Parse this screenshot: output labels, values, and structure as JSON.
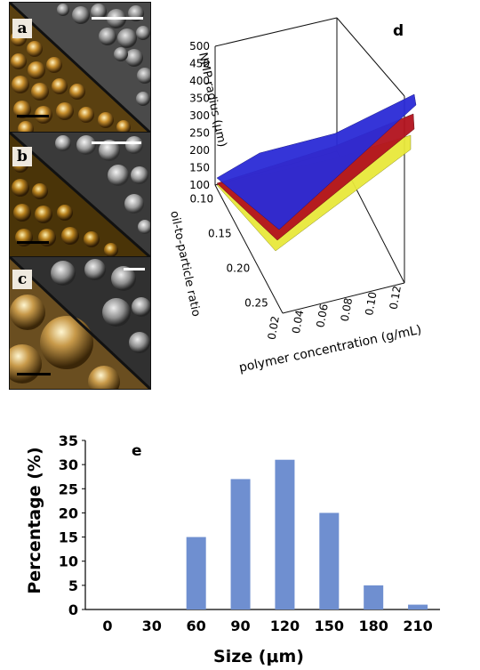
{
  "panels": {
    "a": {
      "letter": "a"
    },
    "b": {
      "letter": "b"
    },
    "c": {
      "letter": "c"
    }
  },
  "surface_plot": {
    "label": "d",
    "z_label": "NMP radius (μm)",
    "z_ticks": [
      "500",
      "450",
      "400",
      "350",
      "300",
      "250",
      "200",
      "150",
      "100"
    ],
    "y_label": "oil-to-particle ratio",
    "y_ticks": [
      "0.10",
      "0.15",
      "0.20",
      "0.25"
    ],
    "x_label": "polymer concentration (g/mL)",
    "x_ticks": [
      "0.02",
      "0.04",
      "0.06",
      "0.08",
      "0.10",
      "0.12"
    ],
    "surface_colors": [
      "#2b2bd6",
      "#b3121e",
      "#e8e83a"
    ]
  },
  "chart_data": {
    "type": "bar",
    "label": "e",
    "categories": [
      "0",
      "30",
      "60",
      "90",
      "120",
      "150",
      "180",
      "210"
    ],
    "values": [
      0,
      0,
      15,
      27,
      31,
      20,
      5,
      1
    ],
    "xlabel": "Size (μm)",
    "ylabel": "Percentage (%)",
    "ylim": [
      0,
      35
    ],
    "yticks": [
      "0",
      "5",
      "10",
      "15",
      "20",
      "25",
      "30",
      "35"
    ],
    "bar_color": "#6f8fd0"
  }
}
